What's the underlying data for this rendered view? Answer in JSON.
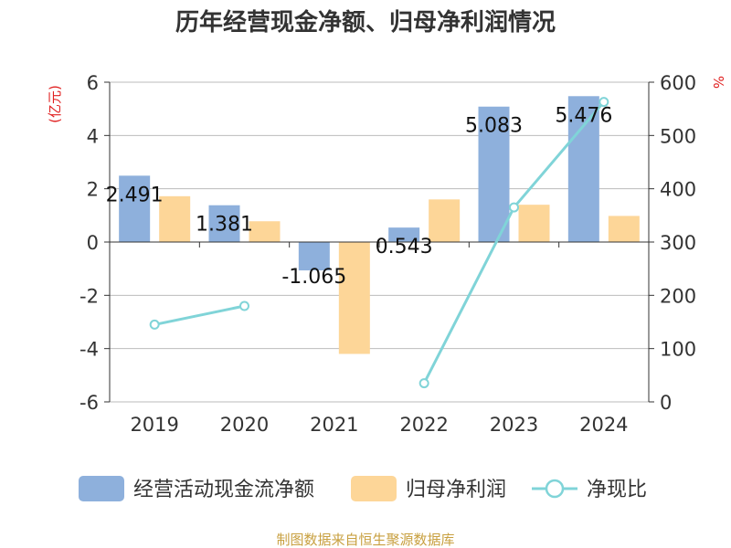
{
  "title": "历年经营现金净额、归母净利润情况",
  "source": "制图数据来自恒生聚源数据库",
  "colors": {
    "operating_cash": "#8eb0dc",
    "net_profit": "#fdd698",
    "net_cash_ratio": "#80d4d8",
    "grid": "#bbbbbb",
    "axis": "#333333",
    "unit": "#e02020",
    "source": "#c8a040"
  },
  "chart_data": {
    "type": "bar",
    "title": "历年经营现金净额、归母净利润情况",
    "categories": [
      "2019",
      "2020",
      "2021",
      "2022",
      "2023",
      "2024"
    ],
    "series": [
      {
        "name": "经营活动现金流净额",
        "type": "bar",
        "axis": "left",
        "values": [
          2.491,
          1.381,
          -1.065,
          0.543,
          5.083,
          5.476
        ],
        "labels": [
          "2.491",
          "1.381",
          "-1.065",
          "0.543",
          "5.083",
          "5.476"
        ]
      },
      {
        "name": "归母净利润",
        "type": "bar",
        "axis": "left",
        "values": [
          1.72,
          0.78,
          -4.2,
          1.6,
          1.4,
          0.98
        ]
      },
      {
        "name": "净现比",
        "type": "line",
        "axis": "right",
        "values": [
          145,
          180,
          null,
          35,
          365,
          563
        ]
      }
    ],
    "y_left": {
      "label": "(亿元)",
      "min": -6,
      "max": 6,
      "ticks": [
        "-6",
        "-4",
        "-2",
        "0",
        "2",
        "4",
        "6"
      ]
    },
    "y_right": {
      "label": "%",
      "min": 0,
      "max": 600,
      "ticks": [
        "0",
        "100",
        "200",
        "300",
        "400",
        "500",
        "600"
      ]
    },
    "grid": true,
    "legend_position": "bottom"
  }
}
